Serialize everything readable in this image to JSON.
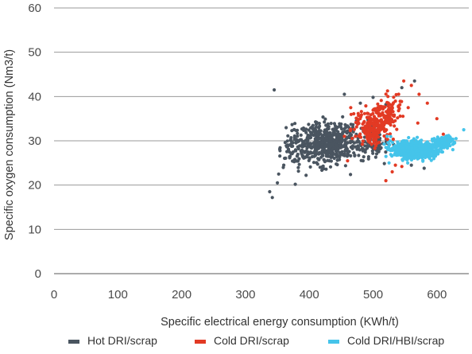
{
  "chart_data": {
    "type": "scatter",
    "xlabel": "Specific electrical energy consumption (KWh/t)",
    "ylabel": "Specific oxygen consumption (Nm3/t)",
    "xlim": [
      0,
      650
    ],
    "ylim": [
      0,
      60
    ],
    "x_ticks": [
      0,
      100,
      200,
      300,
      400,
      500,
      600
    ],
    "y_ticks": [
      0,
      10,
      20,
      30,
      40,
      50,
      60
    ],
    "grid": "horizontal",
    "legend_position": "bottom",
    "series": [
      {
        "name": "Hot DRI/scrap",
        "color": "#4a5560",
        "clusters": [
          {
            "cx": 430,
            "cy": 29.5,
            "sx": 38,
            "sy": 3.8,
            "n": 520
          },
          {
            "cx": 380,
            "cy": 27,
            "sx": 22,
            "sy": 4,
            "n": 70
          },
          {
            "cx": 500,
            "cy": 30,
            "sx": 22,
            "sy": 3.5,
            "n": 90
          }
        ],
        "points": [
          [
            345,
            41.5
          ],
          [
            338,
            18.5
          ],
          [
            342,
            17.2
          ],
          [
            350,
            20.5
          ],
          [
            352,
            22.5
          ],
          [
            360,
            24.5
          ],
          [
            370,
            26.5
          ],
          [
            378,
            20.2
          ],
          [
            395,
            22.2
          ],
          [
            455,
            40.5
          ],
          [
            480,
            38.5
          ],
          [
            500,
            39.8
          ],
          [
            520,
            38.2
          ],
          [
            545,
            42
          ],
          [
            565,
            43.5
          ],
          [
            580,
            23.8
          ],
          [
            560,
            24.5
          ]
        ]
      },
      {
        "name": "Cold DRI/scrap",
        "color": "#e23a24",
        "clusters": [
          {
            "cx": 500,
            "cy": 33,
            "sx": 22,
            "sy": 3.2,
            "n": 200
          },
          {
            "cx": 525,
            "cy": 36.5,
            "sx": 15,
            "sy": 3,
            "n": 90
          }
        ],
        "points": [
          [
            548,
            43.5
          ],
          [
            560,
            42.5
          ],
          [
            572,
            40.5
          ],
          [
            585,
            38.5
          ],
          [
            600,
            35
          ],
          [
            610,
            31.5
          ],
          [
            555,
            37.5
          ],
          [
            540,
            40.5
          ],
          [
            520,
            21
          ],
          [
            530,
            23
          ],
          [
            535,
            24.5
          ],
          [
            545,
            24.2
          ],
          [
            465,
            37.5
          ],
          [
            455,
            31
          ],
          [
            460,
            25.5
          ],
          [
            570,
            34
          ]
        ]
      },
      {
        "name": "Cold DRI/HBI/scrap",
        "color": "#45c4ea",
        "clusters": [
          {
            "cx": 565,
            "cy": 28,
            "sx": 30,
            "sy": 1.7,
            "n": 620
          },
          {
            "cx": 612,
            "cy": 30,
            "sx": 12,
            "sy": 1.2,
            "n": 80
          }
        ],
        "points": [
          [
            642,
            32.5
          ],
          [
            625,
            28
          ],
          [
            630,
            30.5
          ],
          [
            525,
            25
          ],
          [
            520,
            28.5
          ],
          [
            522,
            31
          ],
          [
            600,
            27
          ]
        ]
      }
    ]
  }
}
